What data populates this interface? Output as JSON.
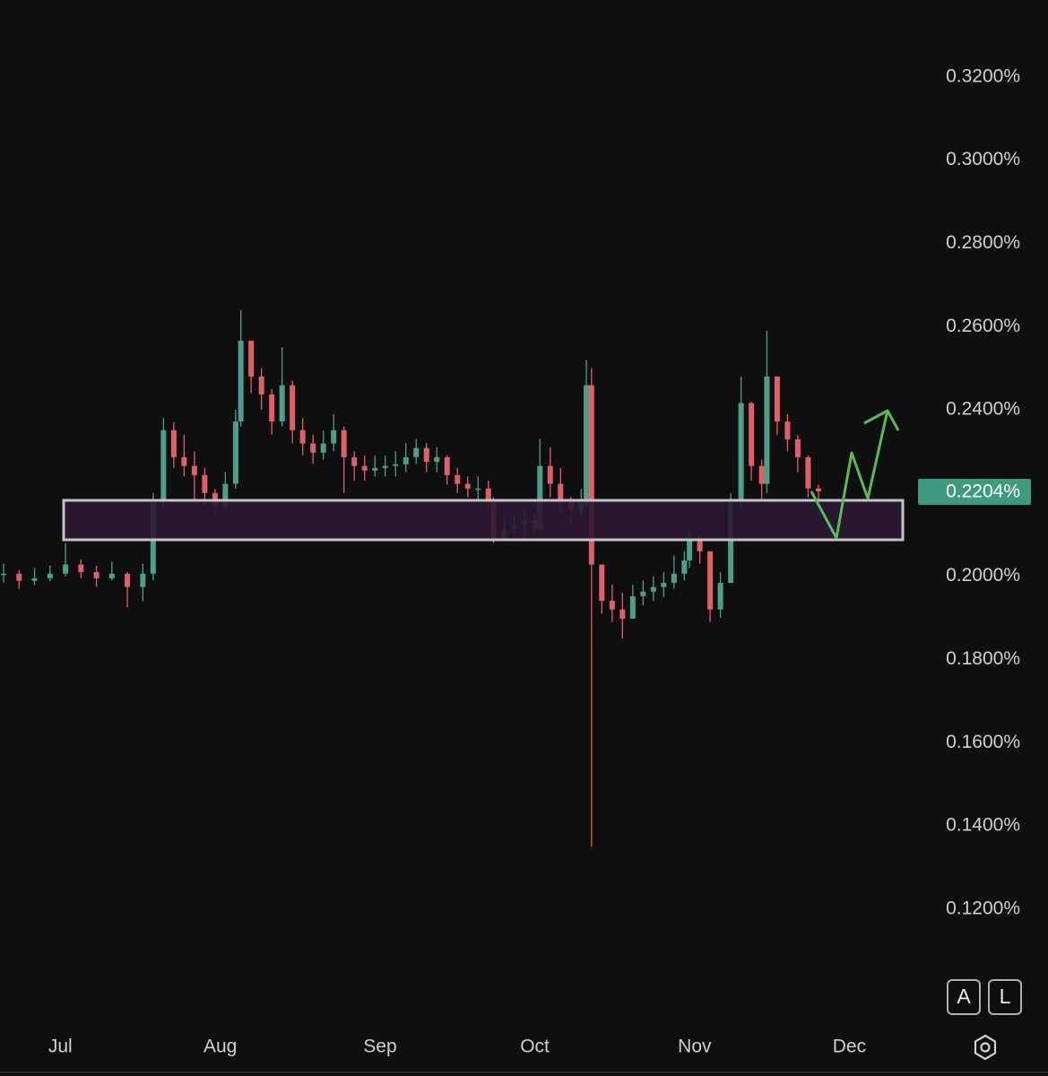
{
  "chart_data": {
    "type": "candlestick",
    "x": [
      -11,
      -8,
      -5,
      -2,
      1,
      4,
      7,
      10,
      13,
      16,
      18,
      20,
      22,
      24,
      26,
      28,
      30,
      32,
      34,
      35,
      37,
      39,
      41,
      43,
      45,
      47,
      49,
      51,
      53,
      55,
      57,
      59,
      61,
      63,
      65,
      67,
      69,
      71,
      73,
      75,
      77,
      79,
      81,
      83,
      84,
      86,
      88,
      90,
      92,
      93,
      95,
      97,
      99,
      101,
      102,
      103,
      105,
      107,
      109,
      111,
      113,
      115,
      117,
      119,
      121,
      122,
      124,
      126,
      128,
      130,
      132,
      134,
      136,
      137,
      139,
      141,
      143,
      145,
      147
    ],
    "close": [
      0.2006,
      0.1989,
      0.1995,
      0.2006,
      0.2028,
      0.201,
      0.1995,
      0.2006,
      0.1974,
      0.2006,
      0.2178,
      0.2351,
      0.2286,
      0.2265,
      0.2243,
      0.22,
      0.2168,
      0.2222,
      0.2372,
      0.2566,
      0.248,
      0.2437,
      0.2372,
      0.2459,
      0.2351,
      0.2319,
      0.2297,
      0.2319,
      0.2351,
      0.2286,
      0.2265,
      0.2254,
      0.226,
      0.2265,
      0.2269,
      0.2286,
      0.2308,
      0.2275,
      0.2286,
      0.2243,
      0.2222,
      0.2211,
      0.2211,
      0.2178,
      0.2092,
      0.2114,
      0.2125,
      0.2135,
      0.2114,
      0.2265,
      0.2222,
      0.2178,
      0.2157,
      0.2178,
      0.2459,
      0.2028,
      0.1941,
      0.192,
      0.1898,
      0.1952,
      0.1963,
      0.1974,
      0.1984,
      0.2006,
      0.2038,
      0.2092,
      0.206,
      0.192,
      0.1984,
      0.2178,
      0.2416,
      0.2265,
      0.2222,
      0.248,
      0.2372,
      0.2329,
      0.2286,
      0.2211,
      0.2204
    ],
    "high": [
      0.203,
      0.2015,
      0.202,
      0.2025,
      0.208,
      0.204,
      0.2025,
      0.2035,
      0.201,
      0.203,
      0.22,
      0.238,
      0.237,
      0.234,
      0.23,
      0.226,
      0.221,
      0.225,
      0.24,
      0.264,
      0.256,
      0.25,
      0.245,
      0.255,
      0.247,
      0.238,
      0.234,
      0.235,
      0.239,
      0.236,
      0.23,
      0.229,
      0.229,
      0.229,
      0.23,
      0.232,
      0.233,
      0.232,
      0.231,
      0.229,
      0.226,
      0.224,
      0.224,
      0.223,
      0.219,
      0.214,
      0.215,
      0.216,
      0.215,
      0.233,
      0.231,
      0.226,
      0.219,
      0.221,
      0.252,
      0.25,
      0.202,
      0.198,
      0.196,
      0.198,
      0.199,
      0.2,
      0.201,
      0.205,
      0.206,
      0.211,
      0.21,
      0.205,
      0.201,
      0.22,
      0.248,
      0.242,
      0.228,
      0.259,
      0.248,
      0.239,
      0.234,
      0.229,
      0.222
    ],
    "low": [
      0.1985,
      0.197,
      0.1978,
      0.1988,
      0.2,
      0.1995,
      0.1975,
      0.199,
      0.1925,
      0.194,
      0.199,
      0.216,
      0.226,
      0.224,
      0.218,
      0.217,
      0.215,
      0.216,
      0.221,
      0.236,
      0.244,
      0.24,
      0.234,
      0.236,
      0.232,
      0.229,
      0.227,
      0.228,
      0.23,
      0.22,
      0.223,
      0.223,
      0.224,
      0.224,
      0.224,
      0.225,
      0.227,
      0.225,
      0.225,
      0.222,
      0.22,
      0.219,
      0.218,
      0.216,
      0.208,
      0.209,
      0.21,
      0.209,
      0.21,
      0.211,
      0.219,
      0.215,
      0.213,
      0.214,
      0.217,
      0.135,
      0.191,
      0.189,
      0.185,
      0.19,
      0.193,
      0.194,
      0.195,
      0.197,
      0.199,
      0.202,
      0.203,
      0.189,
      0.19,
      0.199,
      0.216,
      0.223,
      0.218,
      0.22,
      0.234,
      0.23,
      0.225,
      0.219,
      0.218
    ],
    "up_color": "#4f9e8a",
    "down_color": "#e0606a",
    "xlim": [
      -11.7,
      165.7
    ],
    "xticks": [
      {
        "value": 0,
        "label": "Jul"
      },
      {
        "value": 31,
        "label": "Aug"
      },
      {
        "value": 62,
        "label": "Sep"
      },
      {
        "value": 92,
        "label": "Oct"
      },
      {
        "value": 123,
        "label": "Nov"
      },
      {
        "value": 153,
        "label": "Dec"
      }
    ],
    "ylim": [
      0.0928,
      0.3385
    ],
    "yticks": [
      {
        "value": 0.12,
        "label": "0.1200%"
      },
      {
        "value": 0.14,
        "label": "0.1400%"
      },
      {
        "value": 0.16,
        "label": "0.1600%"
      },
      {
        "value": 0.18,
        "label": "0.1800%"
      },
      {
        "value": 0.2,
        "label": "0.2000%"
      },
      {
        "value": 0.22,
        "label": "0.2200%"
      },
      {
        "value": 0.24,
        "label": "0.2400%"
      },
      {
        "value": 0.26,
        "label": "0.2600%"
      },
      {
        "value": 0.28,
        "label": "0.2800%"
      },
      {
        "value": 0.3,
        "label": "0.3000%"
      },
      {
        "value": 0.32,
        "label": "0.3200%"
      }
    ],
    "last_price": {
      "value": 0.2204,
      "label": "0.2204%"
    },
    "buttons": [
      "A",
      "L"
    ]
  }
}
